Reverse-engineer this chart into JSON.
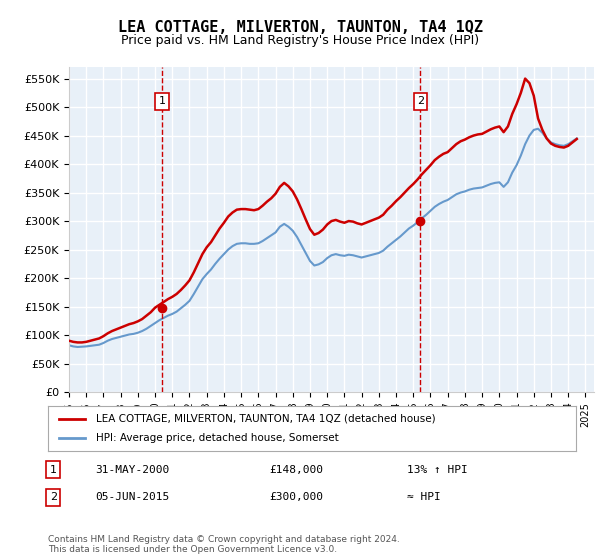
{
  "title": "LEA COTTAGE, MILVERTON, TAUNTON, TA4 1QZ",
  "subtitle": "Price paid vs. HM Land Registry's House Price Index (HPI)",
  "ylabel_ticks": [
    "£0",
    "£50K",
    "£100K",
    "£150K",
    "£200K",
    "£250K",
    "£300K",
    "£350K",
    "£400K",
    "£450K",
    "£500K",
    "£550K"
  ],
  "ytick_values": [
    0,
    50000,
    100000,
    150000,
    200000,
    250000,
    300000,
    350000,
    400000,
    450000,
    500000,
    550000
  ],
  "ylim": [
    0,
    570000
  ],
  "xlim_start": 1995.0,
  "xlim_end": 2025.5,
  "background_color": "#e8f0f8",
  "plot_bg_color": "#e8f0f8",
  "grid_color": "#ffffff",
  "red_line_color": "#cc0000",
  "blue_line_color": "#6699cc",
  "marker1_x": 2000.42,
  "marker1_y": 148000,
  "marker2_x": 2015.42,
  "marker2_y": 300000,
  "legend_label1": "LEA COTTAGE, MILVERTON, TAUNTON, TA4 1QZ (detached house)",
  "legend_label2": "HPI: Average price, detached house, Somerset",
  "annotation1_date": "31-MAY-2000",
  "annotation1_price": "£148,000",
  "annotation1_note": "13% ↑ HPI",
  "annotation2_date": "05-JUN-2015",
  "annotation2_price": "£300,000",
  "annotation2_note": "≈ HPI",
  "footer": "Contains HM Land Registry data © Crown copyright and database right 2024.\nThis data is licensed under the Open Government Licence v3.0.",
  "hpi_data": {
    "x": [
      1995.0,
      1995.25,
      1995.5,
      1995.75,
      1996.0,
      1996.25,
      1996.5,
      1996.75,
      1997.0,
      1997.25,
      1997.5,
      1997.75,
      1998.0,
      1998.25,
      1998.5,
      1998.75,
      1999.0,
      1999.25,
      1999.5,
      1999.75,
      2000.0,
      2000.25,
      2000.5,
      2000.75,
      2001.0,
      2001.25,
      2001.5,
      2001.75,
      2002.0,
      2002.25,
      2002.5,
      2002.75,
      2003.0,
      2003.25,
      2003.5,
      2003.75,
      2004.0,
      2004.25,
      2004.5,
      2004.75,
      2005.0,
      2005.25,
      2005.5,
      2005.75,
      2006.0,
      2006.25,
      2006.5,
      2006.75,
      2007.0,
      2007.25,
      2007.5,
      2007.75,
      2008.0,
      2008.25,
      2008.5,
      2008.75,
      2009.0,
      2009.25,
      2009.5,
      2009.75,
      2010.0,
      2010.25,
      2010.5,
      2010.75,
      2011.0,
      2011.25,
      2011.5,
      2011.75,
      2012.0,
      2012.25,
      2012.5,
      2012.75,
      2013.0,
      2013.25,
      2013.5,
      2013.75,
      2014.0,
      2014.25,
      2014.5,
      2014.75,
      2015.0,
      2015.25,
      2015.5,
      2015.75,
      2016.0,
      2016.25,
      2016.5,
      2016.75,
      2017.0,
      2017.25,
      2017.5,
      2017.75,
      2018.0,
      2018.25,
      2018.5,
      2018.75,
      2019.0,
      2019.25,
      2019.5,
      2019.75,
      2020.0,
      2020.25,
      2020.5,
      2020.75,
      2021.0,
      2021.25,
      2021.5,
      2021.75,
      2022.0,
      2022.25,
      2022.5,
      2022.75,
      2023.0,
      2023.25,
      2023.5,
      2023.75,
      2024.0,
      2024.25,
      2024.5
    ],
    "y": [
      82000,
      80000,
      79000,
      79500,
      80000,
      81000,
      82000,
      83000,
      86000,
      90000,
      93000,
      95000,
      97000,
      99000,
      101000,
      102000,
      104000,
      107000,
      111000,
      116000,
      121000,
      126000,
      130000,
      134000,
      137000,
      141000,
      147000,
      153000,
      160000,
      172000,
      185000,
      198000,
      207000,
      215000,
      225000,
      234000,
      242000,
      250000,
      256000,
      260000,
      261000,
      261000,
      260000,
      260000,
      261000,
      265000,
      270000,
      275000,
      280000,
      290000,
      295000,
      290000,
      283000,
      272000,
      258000,
      244000,
      230000,
      222000,
      224000,
      228000,
      235000,
      240000,
      242000,
      240000,
      239000,
      241000,
      240000,
      238000,
      236000,
      238000,
      240000,
      242000,
      244000,
      248000,
      255000,
      261000,
      267000,
      273000,
      280000,
      287000,
      292000,
      298000,
      305000,
      311000,
      318000,
      325000,
      330000,
      334000,
      337000,
      342000,
      347000,
      350000,
      352000,
      355000,
      357000,
      358000,
      359000,
      362000,
      365000,
      367000,
      368000,
      360000,
      368000,
      385000,
      398000,
      415000,
      435000,
      450000,
      460000,
      462000,
      455000,
      445000,
      438000,
      435000,
      433000,
      432000,
      435000,
      440000,
      445000
    ]
  },
  "property_data": {
    "x": [
      1995.0,
      1995.25,
      1995.5,
      1995.75,
      1996.0,
      1996.25,
      1996.5,
      1996.75,
      1997.0,
      1997.25,
      1997.5,
      1997.75,
      1998.0,
      1998.25,
      1998.5,
      1998.75,
      1999.0,
      1999.25,
      1999.5,
      1999.75,
      2000.0,
      2000.25,
      2000.5,
      2000.75,
      2001.0,
      2001.25,
      2001.5,
      2001.75,
      2002.0,
      2002.25,
      2002.5,
      2002.75,
      2003.0,
      2003.25,
      2003.5,
      2003.75,
      2004.0,
      2004.25,
      2004.5,
      2004.75,
      2005.0,
      2005.25,
      2005.5,
      2005.75,
      2006.0,
      2006.25,
      2006.5,
      2006.75,
      2007.0,
      2007.25,
      2007.5,
      2007.75,
      2008.0,
      2008.25,
      2008.5,
      2008.75,
      2009.0,
      2009.25,
      2009.5,
      2009.75,
      2010.0,
      2010.25,
      2010.5,
      2010.75,
      2011.0,
      2011.25,
      2011.5,
      2011.75,
      2012.0,
      2012.25,
      2012.5,
      2012.75,
      2013.0,
      2013.25,
      2013.5,
      2013.75,
      2014.0,
      2014.25,
      2014.5,
      2014.75,
      2015.0,
      2015.25,
      2015.5,
      2015.75,
      2016.0,
      2016.25,
      2016.5,
      2016.75,
      2017.0,
      2017.25,
      2017.5,
      2017.75,
      2018.0,
      2018.25,
      2018.5,
      2018.75,
      2019.0,
      2019.25,
      2019.5,
      2019.75,
      2020.0,
      2020.25,
      2020.5,
      2020.75,
      2021.0,
      2021.25,
      2021.5,
      2021.75,
      2022.0,
      2022.25,
      2022.5,
      2022.75,
      2023.0,
      2023.25,
      2023.5,
      2023.75,
      2024.0,
      2024.25,
      2024.5
    ],
    "y": [
      90000,
      88000,
      87000,
      87000,
      88000,
      90000,
      92000,
      94000,
      98000,
      103000,
      107000,
      110000,
      113000,
      116000,
      119000,
      121000,
      124000,
      128000,
      134000,
      140000,
      148000,
      153000,
      158000,
      163000,
      167000,
      172000,
      179000,
      187000,
      196000,
      210000,
      226000,
      242000,
      254000,
      263000,
      275000,
      287000,
      297000,
      308000,
      315000,
      320000,
      321000,
      321000,
      320000,
      319000,
      321000,
      327000,
      334000,
      340000,
      348000,
      360000,
      367000,
      361000,
      352000,
      338000,
      321000,
      303000,
      286000,
      276000,
      279000,
      285000,
      294000,
      300000,
      302000,
      299000,
      297000,
      300000,
      299000,
      296000,
      294000,
      297000,
      300000,
      303000,
      306000,
      311000,
      320000,
      327000,
      335000,
      342000,
      350000,
      358000,
      365000,
      373000,
      382000,
      390000,
      398000,
      407000,
      413000,
      418000,
      421000,
      428000,
      435000,
      440000,
      443000,
      447000,
      450000,
      452000,
      453000,
      457000,
      461000,
      464000,
      466000,
      456000,
      466000,
      488000,
      505000,
      525000,
      550000,
      542000,
      520000,
      480000,
      460000,
      445000,
      436000,
      432000,
      430000,
      429000,
      432000,
      438000,
      444000
    ]
  }
}
